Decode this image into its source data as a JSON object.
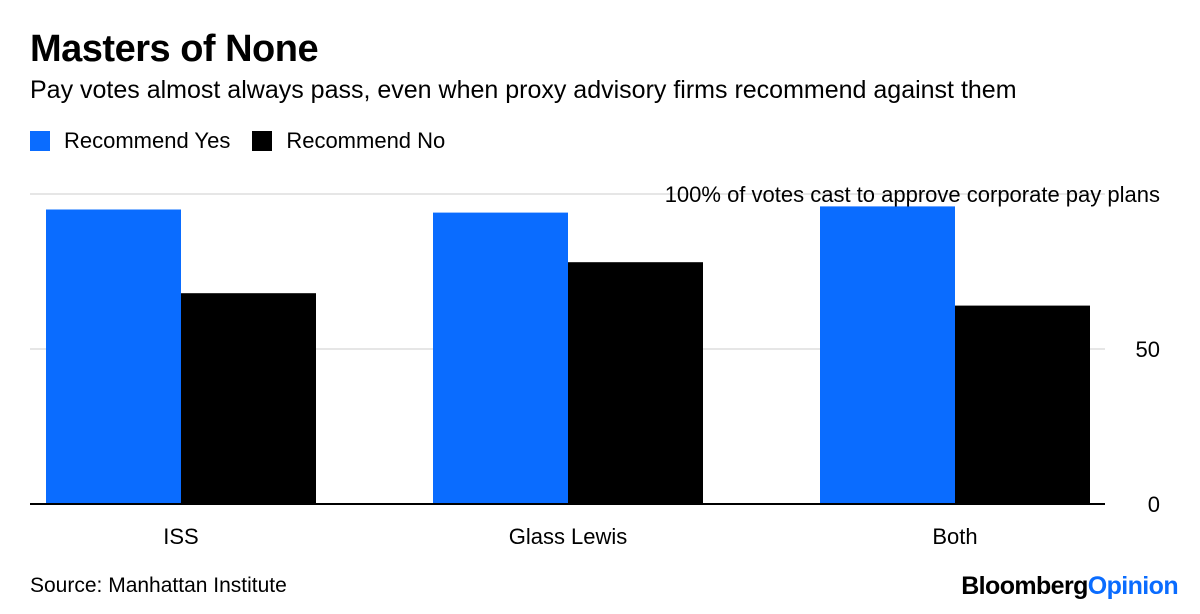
{
  "title": "Masters of None",
  "subtitle": "Pay votes almost always pass, even when proxy advisory firms recommend against them",
  "source": "Source: Manhattan Institute",
  "brand": {
    "part1": "Bloomberg",
    "part2": "Opinion"
  },
  "colors": {
    "yes": "#0a6cff",
    "no": "#000000",
    "grid": "#e6e6e6",
    "brand_accent": "#0a6cff"
  },
  "chart_data": {
    "type": "bar",
    "categories": [
      "ISS",
      "Glass Lewis",
      "Both"
    ],
    "series": [
      {
        "name": "Recommend Yes",
        "values": [
          95,
          94,
          96
        ]
      },
      {
        "name": "Recommend No",
        "values": [
          68,
          78,
          64
        ]
      }
    ],
    "ylim": [
      0,
      100
    ],
    "yticks": [
      0,
      50,
      100
    ],
    "ytick_labels": [
      "0",
      "50",
      "100% of votes cast to approve corporate pay plans"
    ],
    "y_axis_side": "right",
    "grid": true,
    "legend_position": "top-left"
  }
}
